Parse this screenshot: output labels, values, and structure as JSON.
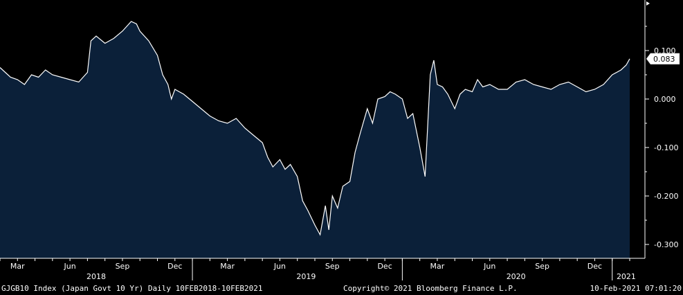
{
  "footer": {
    "left": "GJGB10 Index (Japan Govt 10 Yr)  Daily 10FEB2018-10FEB2021",
    "center": "Copyright© 2021 Bloomberg Finance L.P.",
    "right": "10-Feb-2021 07:01:20"
  },
  "colors": {
    "background": "#000000",
    "area_fill": "#0b2039",
    "line": "#ffffff",
    "last_box": "#ffffff"
  },
  "chart_data": {
    "type": "area",
    "title": "",
    "xlabel": "",
    "ylabel": "",
    "ylim": [
      -0.33,
      0.2
    ],
    "y_ticks": [
      0.1,
      0.0,
      -0.1,
      -0.2,
      -0.3
    ],
    "y_tick_labels": [
      "0.100",
      "0.000",
      "-0.100",
      "-0.200",
      "-0.300"
    ],
    "x_tick_labels": [
      "Mar",
      "Jun",
      "Sep",
      "Dec",
      "Mar",
      "Jun",
      "Sep",
      "Dec",
      "Mar",
      "Jun",
      "Sep",
      "Dec"
    ],
    "x_tick_months": [
      1,
      4,
      7,
      10,
      13,
      16,
      19,
      22,
      25,
      28,
      31,
      34
    ],
    "year_labels": [
      "2018",
      "2019",
      "2020",
      "2021"
    ],
    "year_months": [
      5.5,
      17.5,
      29.5,
      35.8
    ],
    "x_unit": "months since Feb 2018",
    "last_value": 0.083,
    "last_value_label": "0.083",
    "series": [
      {
        "values": [
          [
            0.0,
            0.065
          ],
          [
            0.3,
            0.055
          ],
          [
            0.6,
            0.045
          ],
          [
            1.0,
            0.04
          ],
          [
            1.4,
            0.03
          ],
          [
            1.8,
            0.05
          ],
          [
            2.2,
            0.045
          ],
          [
            2.6,
            0.06
          ],
          [
            3.0,
            0.05
          ],
          [
            3.5,
            0.045
          ],
          [
            4.0,
            0.04
          ],
          [
            4.5,
            0.035
          ],
          [
            5.0,
            0.055
          ],
          [
            5.2,
            0.12
          ],
          [
            5.5,
            0.13
          ],
          [
            6.0,
            0.115
          ],
          [
            6.5,
            0.125
          ],
          [
            7.0,
            0.14
          ],
          [
            7.5,
            0.16
          ],
          [
            7.8,
            0.155
          ],
          [
            8.0,
            0.14
          ],
          [
            8.5,
            0.12
          ],
          [
            9.0,
            0.09
          ],
          [
            9.3,
            0.05
          ],
          [
            9.6,
            0.03
          ],
          [
            9.8,
            0.0
          ],
          [
            10.0,
            0.02
          ],
          [
            10.5,
            0.01
          ],
          [
            11.0,
            -0.005
          ],
          [
            11.5,
            -0.02
          ],
          [
            12.0,
            -0.035
          ],
          [
            12.5,
            -0.045
          ],
          [
            13.0,
            -0.05
          ],
          [
            13.5,
            -0.04
          ],
          [
            14.0,
            -0.06
          ],
          [
            14.5,
            -0.075
          ],
          [
            15.0,
            -0.09
          ],
          [
            15.3,
            -0.12
          ],
          [
            15.6,
            -0.14
          ],
          [
            16.0,
            -0.125
          ],
          [
            16.3,
            -0.145
          ],
          [
            16.6,
            -0.135
          ],
          [
            17.0,
            -0.16
          ],
          [
            17.3,
            -0.21
          ],
          [
            17.6,
            -0.23
          ],
          [
            18.0,
            -0.26
          ],
          [
            18.3,
            -0.28
          ],
          [
            18.6,
            -0.22
          ],
          [
            18.8,
            -0.27
          ],
          [
            19.0,
            -0.2
          ],
          [
            19.3,
            -0.225
          ],
          [
            19.6,
            -0.18
          ],
          [
            20.0,
            -0.17
          ],
          [
            20.3,
            -0.11
          ],
          [
            20.6,
            -0.07
          ],
          [
            21.0,
            -0.02
          ],
          [
            21.3,
            -0.05
          ],
          [
            21.6,
            0.0
          ],
          [
            22.0,
            0.005
          ],
          [
            22.3,
            0.015
          ],
          [
            22.6,
            0.01
          ],
          [
            23.0,
            0.0
          ],
          [
            23.3,
            -0.04
          ],
          [
            23.6,
            -0.03
          ],
          [
            24.0,
            -0.1
          ],
          [
            24.3,
            -0.16
          ],
          [
            24.6,
            0.05
          ],
          [
            24.8,
            0.08
          ],
          [
            25.0,
            0.03
          ],
          [
            25.3,
            0.025
          ],
          [
            25.6,
            0.01
          ],
          [
            26.0,
            -0.02
          ],
          [
            26.3,
            0.01
          ],
          [
            26.6,
            0.02
          ],
          [
            27.0,
            0.015
          ],
          [
            27.3,
            0.04
          ],
          [
            27.6,
            0.025
          ],
          [
            28.0,
            0.03
          ],
          [
            28.5,
            0.02
          ],
          [
            29.0,
            0.02
          ],
          [
            29.5,
            0.035
          ],
          [
            30.0,
            0.04
          ],
          [
            30.5,
            0.03
          ],
          [
            31.0,
            0.025
          ],
          [
            31.5,
            0.02
          ],
          [
            32.0,
            0.03
          ],
          [
            32.5,
            0.035
          ],
          [
            33.0,
            0.025
          ],
          [
            33.5,
            0.015
          ],
          [
            34.0,
            0.02
          ],
          [
            34.5,
            0.03
          ],
          [
            35.0,
            0.05
          ],
          [
            35.5,
            0.06
          ],
          [
            35.8,
            0.07
          ],
          [
            36.0,
            0.083
          ]
        ]
      }
    ]
  }
}
